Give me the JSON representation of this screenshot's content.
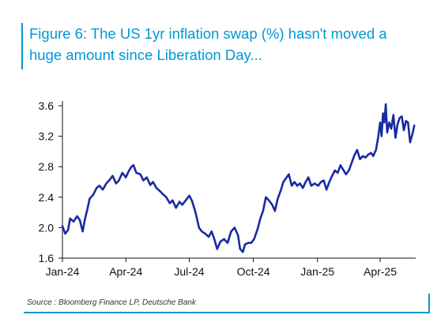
{
  "title_lines": [
    "Figure 6: The US 1yr inflation swap (%) hasn't moved a",
    "huge amount since Liberation Day..."
  ],
  "source": "Source : Bloomberg Finance LP, Deutsche Bank",
  "colors": {
    "accent": "#0097d4",
    "series": "#1a2aa0"
  },
  "chart_data": {
    "type": "line",
    "title": "Figure 6: The US 1yr inflation swap (%) hasn't moved a huge amount since Liberation Day...",
    "xlabel": "",
    "ylabel": "",
    "ylim": [
      1.6,
      3.6
    ],
    "xlim": [
      "2024-01-01",
      "2025-05-22"
    ],
    "grid": false,
    "legend": "none",
    "y_ticks": [
      "1.6",
      "2.0",
      "2.4",
      "2.8",
      "3.2",
      "3.6"
    ],
    "x_ticks": [
      {
        "date": "2024-01-01",
        "label": "Jan-24"
      },
      {
        "date": "2024-04-01",
        "label": "Apr-24"
      },
      {
        "date": "2024-07-01",
        "label": "Jul-24"
      },
      {
        "date": "2024-10-01",
        "label": "Oct-24"
      },
      {
        "date": "2025-01-01",
        "label": "Jan-25"
      },
      {
        "date": "2025-04-01",
        "label": "Apr-25"
      }
    ],
    "series": [
      {
        "values": [
          [
            "2024-01-01",
            2.02
          ],
          [
            "2024-01-05",
            1.92
          ],
          [
            "2024-01-09",
            1.97
          ],
          [
            "2024-01-12",
            2.12
          ],
          [
            "2024-01-17",
            2.08
          ],
          [
            "2024-01-22",
            2.15
          ],
          [
            "2024-01-26",
            2.1
          ],
          [
            "2024-01-30",
            1.95
          ],
          [
            "2024-02-02",
            2.1
          ],
          [
            "2024-02-06",
            2.25
          ],
          [
            "2024-02-09",
            2.38
          ],
          [
            "2024-02-14",
            2.43
          ],
          [
            "2024-02-19",
            2.52
          ],
          [
            "2024-02-23",
            2.55
          ],
          [
            "2024-02-28",
            2.5
          ],
          [
            "2024-03-04",
            2.58
          ],
          [
            "2024-03-08",
            2.62
          ],
          [
            "2024-03-13",
            2.68
          ],
          [
            "2024-03-18",
            2.58
          ],
          [
            "2024-03-22",
            2.62
          ],
          [
            "2024-03-27",
            2.72
          ],
          [
            "2024-04-01",
            2.66
          ],
          [
            "2024-04-05",
            2.74
          ],
          [
            "2024-04-09",
            2.8
          ],
          [
            "2024-04-12",
            2.82
          ],
          [
            "2024-04-16",
            2.72
          ],
          [
            "2024-04-22",
            2.7
          ],
          [
            "2024-04-26",
            2.62
          ],
          [
            "2024-05-01",
            2.66
          ],
          [
            "2024-05-06",
            2.56
          ],
          [
            "2024-05-10",
            2.6
          ],
          [
            "2024-05-15",
            2.52
          ],
          [
            "2024-05-20",
            2.48
          ],
          [
            "2024-05-24",
            2.44
          ],
          [
            "2024-05-29",
            2.4
          ],
          [
            "2024-06-03",
            2.32
          ],
          [
            "2024-06-07",
            2.36
          ],
          [
            "2024-06-12",
            2.26
          ],
          [
            "2024-06-17",
            2.34
          ],
          [
            "2024-06-21",
            2.3
          ],
          [
            "2024-06-26",
            2.36
          ],
          [
            "2024-07-01",
            2.42
          ],
          [
            "2024-07-05",
            2.35
          ],
          [
            "2024-07-10",
            2.2
          ],
          [
            "2024-07-15",
            2.0
          ],
          [
            "2024-07-19",
            1.95
          ],
          [
            "2024-07-24",
            1.92
          ],
          [
            "2024-07-29",
            1.88
          ],
          [
            "2024-08-02",
            1.95
          ],
          [
            "2024-08-06",
            1.85
          ],
          [
            "2024-08-10",
            1.72
          ],
          [
            "2024-08-15",
            1.82
          ],
          [
            "2024-08-20",
            1.85
          ],
          [
            "2024-08-25",
            1.8
          ],
          [
            "2024-08-30",
            1.95
          ],
          [
            "2024-09-04",
            2.0
          ],
          [
            "2024-09-09",
            1.9
          ],
          [
            "2024-09-12",
            1.72
          ],
          [
            "2024-09-16",
            1.68
          ],
          [
            "2024-09-19",
            1.78
          ],
          [
            "2024-09-24",
            1.8
          ],
          [
            "2024-09-28",
            1.8
          ],
          [
            "2024-10-02",
            1.85
          ],
          [
            "2024-10-07",
            1.98
          ],
          [
            "2024-10-11",
            2.12
          ],
          [
            "2024-10-15",
            2.22
          ],
          [
            "2024-10-19",
            2.4
          ],
          [
            "2024-10-24",
            2.35
          ],
          [
            "2024-10-28",
            2.3
          ],
          [
            "2024-11-01",
            2.22
          ],
          [
            "2024-11-05",
            2.38
          ],
          [
            "2024-11-09",
            2.48
          ],
          [
            "2024-11-13",
            2.6
          ],
          [
            "2024-11-17",
            2.65
          ],
          [
            "2024-11-21",
            2.7
          ],
          [
            "2024-11-25",
            2.55
          ],
          [
            "2024-11-29",
            2.6
          ],
          [
            "2024-12-03",
            2.55
          ],
          [
            "2024-12-07",
            2.58
          ],
          [
            "2024-12-11",
            2.52
          ],
          [
            "2024-12-15",
            2.6
          ],
          [
            "2024-12-19",
            2.66
          ],
          [
            "2024-12-23",
            2.55
          ],
          [
            "2024-12-28",
            2.58
          ],
          [
            "2025-01-02",
            2.55
          ],
          [
            "2025-01-06",
            2.6
          ],
          [
            "2025-01-10",
            2.62
          ],
          [
            "2025-01-14",
            2.5
          ],
          [
            "2025-01-18",
            2.6
          ],
          [
            "2025-01-22",
            2.68
          ],
          [
            "2025-01-26",
            2.75
          ],
          [
            "2025-01-30",
            2.72
          ],
          [
            "2025-02-03",
            2.82
          ],
          [
            "2025-02-07",
            2.76
          ],
          [
            "2025-02-11",
            2.7
          ],
          [
            "2025-02-15",
            2.75
          ],
          [
            "2025-02-19",
            2.85
          ],
          [
            "2025-02-23",
            2.95
          ],
          [
            "2025-02-27",
            3.02
          ],
          [
            "2025-03-03",
            2.9
          ],
          [
            "2025-03-07",
            2.94
          ],
          [
            "2025-03-11",
            2.92
          ],
          [
            "2025-03-15",
            2.96
          ],
          [
            "2025-03-19",
            2.98
          ],
          [
            "2025-03-22",
            2.94
          ],
          [
            "2025-03-26",
            3.02
          ],
          [
            "2025-03-29",
            3.18
          ],
          [
            "2025-04-01",
            3.38
          ],
          [
            "2025-04-03",
            3.2
          ],
          [
            "2025-04-05",
            3.5
          ],
          [
            "2025-04-07",
            3.38
          ],
          [
            "2025-04-09",
            3.62
          ],
          [
            "2025-04-11",
            3.25
          ],
          [
            "2025-04-14",
            3.38
          ],
          [
            "2025-04-17",
            3.3
          ],
          [
            "2025-04-20",
            3.48
          ],
          [
            "2025-04-23",
            3.18
          ],
          [
            "2025-04-26",
            3.36
          ],
          [
            "2025-04-29",
            3.44
          ],
          [
            "2025-05-02",
            3.46
          ],
          [
            "2025-05-05",
            3.28
          ],
          [
            "2025-05-08",
            3.4
          ],
          [
            "2025-05-11",
            3.38
          ],
          [
            "2025-05-14",
            3.12
          ],
          [
            "2025-05-17",
            3.22
          ],
          [
            "2025-05-20",
            3.34
          ]
        ]
      }
    ]
  }
}
